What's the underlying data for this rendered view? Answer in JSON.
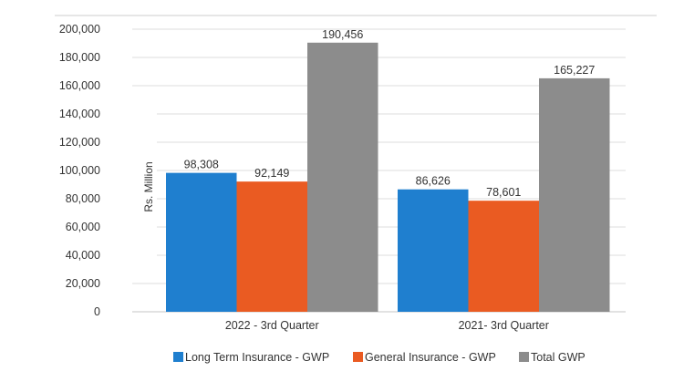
{
  "chart_data": {
    "type": "bar",
    "title": "",
    "xlabel": "",
    "ylabel": "Rs. Million",
    "ylim": [
      0,
      200000
    ],
    "yticks": [
      0,
      20000,
      40000,
      60000,
      80000,
      100000,
      120000,
      140000,
      160000,
      180000,
      200000
    ],
    "ytick_labels": [
      "0",
      "20,000",
      "40,000",
      "60,000",
      "80,000",
      "100,000",
      "120,000",
      "140,000",
      "160,000",
      "180,000",
      "200,000"
    ],
    "categories": [
      "2022 - 3rd  Quarter",
      "2021- 3rd  Quarter"
    ],
    "series": [
      {
        "name": "Long Term Insurance - GWP",
        "color": "#1f7fcf",
        "values": [
          98308,
          86626
        ],
        "labels": [
          "98,308",
          "86,626"
        ]
      },
      {
        "name": "General Insurance - GWP",
        "color": "#ea5b22",
        "values": [
          92149,
          78601
        ],
        "labels": [
          "92,149",
          "78,601"
        ]
      },
      {
        "name": "Total GWP",
        "color": "#8c8c8c",
        "values": [
          190456,
          165227
        ],
        "labels": [
          "190,456",
          "165,227"
        ]
      }
    ],
    "grid": true,
    "legend": "bottom"
  }
}
